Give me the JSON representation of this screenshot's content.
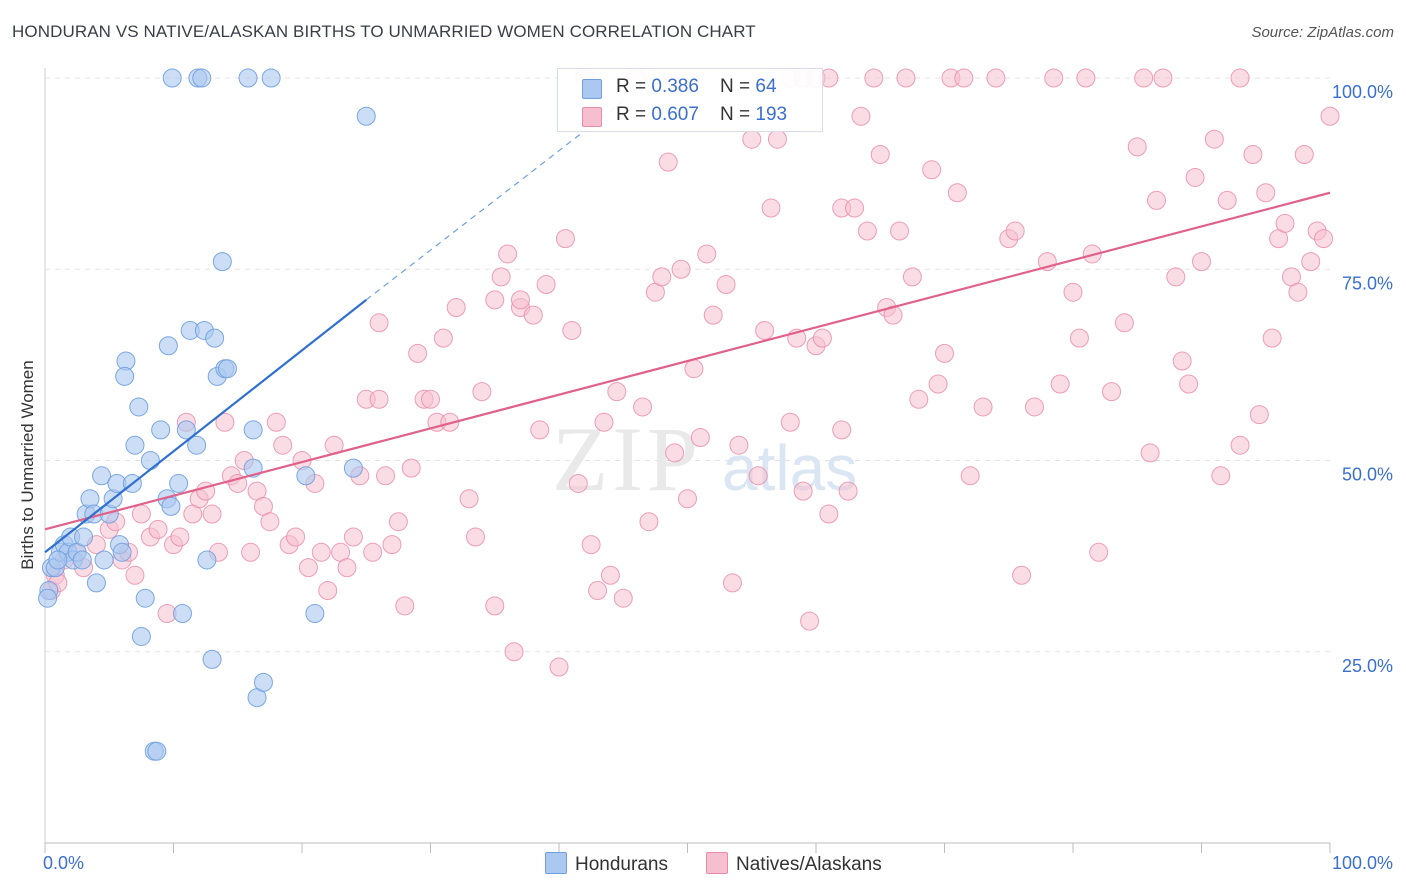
{
  "title": "HONDURAN VS NATIVE/ALASKAN BIRTHS TO UNMARRIED WOMEN CORRELATION CHART",
  "source": "Source: ZipAtlas.com",
  "watermark": {
    "zip": "ZIP",
    "atlas": "atlas"
  },
  "colors": {
    "blue_fill": "#aac8f0",
    "blue_stroke": "#6f9fe0",
    "blue_line": "#2f6fcf",
    "pink_fill": "#f6bfd0",
    "pink_stroke": "#e88aa8",
    "pink_line": "#e0628c",
    "axis_label": "#3a6fd0",
    "grid": "#e3e3e3"
  },
  "legend": {
    "rows": [
      {
        "r_label": "R = ",
        "r_value": "0.386",
        "n_label": "N = ",
        "n_value": "64"
      },
      {
        "r_label": "R = ",
        "r_value": "0.607",
        "n_label": "N = ",
        "n_value": "193"
      }
    ]
  },
  "bottom_legend": [
    "Hondurans",
    "Natives/Alaskans"
  ],
  "chart_data": {
    "type": "scatter",
    "title": "HONDURAN VS NATIVE/ALASKAN BIRTHS TO UNMARRIED WOMEN CORRELATION CHART",
    "xlabel": "",
    "ylabel": "Births to Unmarried Women",
    "xlim": [
      0,
      100
    ],
    "ylim": [
      0,
      100
    ],
    "x_tick_labels": [
      "0.0%",
      "100.0%"
    ],
    "y_tick_labels": [
      "25.0%",
      "50.0%",
      "75.0%",
      "100.0%"
    ],
    "y_ticks": [
      25,
      50,
      75,
      100
    ],
    "series": [
      {
        "name": "Hondurans",
        "r": 0.386,
        "n": 64,
        "trend": {
          "x0": 0,
          "y0": 38,
          "x1": 25,
          "y1": 71,
          "dashed_to_x": 45,
          "dashed_to_y": 97
        },
        "points": [
          [
            0.3,
            33
          ],
          [
            0.5,
            36
          ],
          [
            0.8,
            36
          ],
          [
            1.2,
            38
          ],
          [
            1.5,
            39
          ],
          [
            1.8,
            38
          ],
          [
            2.0,
            40
          ],
          [
            2.2,
            37
          ],
          [
            2.5,
            38
          ],
          [
            3.0,
            40
          ],
          [
            3.2,
            43
          ],
          [
            3.5,
            45
          ],
          [
            3.8,
            43
          ],
          [
            4.0,
            34
          ],
          [
            4.4,
            48
          ],
          [
            4.6,
            37
          ],
          [
            5.0,
            43
          ],
          [
            5.3,
            45
          ],
          [
            5.6,
            47
          ],
          [
            5.8,
            39
          ],
          [
            6.0,
            38
          ],
          [
            6.3,
            63
          ],
          [
            6.2,
            61
          ],
          [
            6.8,
            47
          ],
          [
            7.0,
            52
          ],
          [
            7.3,
            57
          ],
          [
            7.5,
            27
          ],
          [
            7.8,
            32
          ],
          [
            8.2,
            50
          ],
          [
            8.5,
            12
          ],
          [
            8.7,
            12
          ],
          [
            9.0,
            54
          ],
          [
            9.5,
            45
          ],
          [
            9.8,
            44
          ],
          [
            9.6,
            65
          ],
          [
            10.4,
            47
          ],
          [
            10.7,
            30
          ],
          [
            11.0,
            54
          ],
          [
            11.3,
            67
          ],
          [
            11.8,
            52
          ],
          [
            12.4,
            67
          ],
          [
            12.6,
            37
          ],
          [
            13.0,
            24
          ],
          [
            13.2,
            66
          ],
          [
            13.4,
            61
          ],
          [
            13.8,
            76
          ],
          [
            14.0,
            62
          ],
          [
            14.2,
            62
          ],
          [
            16.2,
            49
          ],
          [
            16.2,
            54
          ],
          [
            16.5,
            19
          ],
          [
            17.0,
            21
          ],
          [
            9.9,
            100
          ],
          [
            11.9,
            100
          ],
          [
            12.2,
            100
          ],
          [
            15.8,
            100
          ],
          [
            17.6,
            100
          ],
          [
            20.3,
            48
          ],
          [
            21.0,
            30
          ],
          [
            24.0,
            49
          ],
          [
            25.0,
            95
          ],
          [
            0.2,
            32
          ],
          [
            1.0,
            37
          ],
          [
            2.9,
            37
          ]
        ]
      },
      {
        "name": "Natives/Alaskans",
        "r": 0.607,
        "n": 193,
        "trend": {
          "x0": 0,
          "y0": 41,
          "x1": 100,
          "y1": 85
        },
        "points": [
          [
            0.5,
            33
          ],
          [
            0.8,
            35
          ],
          [
            1.0,
            34
          ],
          [
            1.5,
            37
          ],
          [
            2.5,
            38
          ],
          [
            3.0,
            36
          ],
          [
            4.0,
            39
          ],
          [
            5.0,
            41
          ],
          [
            5.5,
            42
          ],
          [
            6.0,
            37
          ],
          [
            6.5,
            38
          ],
          [
            7.0,
            35
          ],
          [
            7.5,
            43
          ],
          [
            8.2,
            40
          ],
          [
            8.8,
            41
          ],
          [
            9.5,
            30
          ],
          [
            10.0,
            39
          ],
          [
            10.5,
            40
          ],
          [
            11.0,
            55
          ],
          [
            11.5,
            43
          ],
          [
            12.0,
            45
          ],
          [
            12.5,
            46
          ],
          [
            13.0,
            43
          ],
          [
            13.5,
            38
          ],
          [
            14.0,
            55
          ],
          [
            14.5,
            48
          ],
          [
            15.0,
            47
          ],
          [
            15.5,
            50
          ],
          [
            16.0,
            38
          ],
          [
            16.5,
            46
          ],
          [
            17.0,
            44
          ],
          [
            17.5,
            42
          ],
          [
            18.0,
            55
          ],
          [
            18.5,
            52
          ],
          [
            19.0,
            39
          ],
          [
            19.5,
            40
          ],
          [
            20.0,
            50
          ],
          [
            20.5,
            36
          ],
          [
            21.0,
            47
          ],
          [
            21.5,
            38
          ],
          [
            22.0,
            33
          ],
          [
            22.5,
            52
          ],
          [
            23.0,
            38
          ],
          [
            23.5,
            36
          ],
          [
            24.0,
            40
          ],
          [
            24.5,
            48
          ],
          [
            25.0,
            58
          ],
          [
            25.5,
            38
          ],
          [
            26.0,
            68
          ],
          [
            26.5,
            48
          ],
          [
            27.0,
            39
          ],
          [
            27.5,
            42
          ],
          [
            28.0,
            31
          ],
          [
            28.5,
            49
          ],
          [
            29.0,
            64
          ],
          [
            29.5,
            58
          ],
          [
            30.0,
            58
          ],
          [
            30.5,
            55
          ],
          [
            31.0,
            66
          ],
          [
            31.5,
            55
          ],
          [
            32.0,
            70
          ],
          [
            33.0,
            45
          ],
          [
            33.5,
            40
          ],
          [
            34.0,
            59
          ],
          [
            35.0,
            71
          ],
          [
            35.5,
            74
          ],
          [
            35.0,
            31
          ],
          [
            36.0,
            77
          ],
          [
            36.5,
            25
          ],
          [
            37.0,
            70
          ],
          [
            38.0,
            69
          ],
          [
            38.5,
            54
          ],
          [
            39.0,
            73
          ],
          [
            40.0,
            23
          ],
          [
            40.5,
            79
          ],
          [
            41.0,
            67
          ],
          [
            41.5,
            47
          ],
          [
            42.0,
            100
          ],
          [
            42.5,
            39
          ],
          [
            43.0,
            33
          ],
          [
            43.5,
            55
          ],
          [
            44.0,
            35
          ],
          [
            44.5,
            59
          ],
          [
            45.0,
            32
          ],
          [
            46.0,
            100
          ],
          [
            46.5,
            57
          ],
          [
            47.0,
            42
          ],
          [
            47.5,
            72
          ],
          [
            48.0,
            74
          ],
          [
            48.5,
            89
          ],
          [
            49.0,
            51
          ],
          [
            49.5,
            75
          ],
          [
            50.0,
            45
          ],
          [
            50.5,
            62
          ],
          [
            51.0,
            53
          ],
          [
            51.5,
            77
          ],
          [
            52.0,
            69
          ],
          [
            53.0,
            73
          ],
          [
            53.5,
            34
          ],
          [
            54.0,
            52
          ],
          [
            55.0,
            92
          ],
          [
            55.5,
            48
          ],
          [
            56.0,
            67
          ],
          [
            56.5,
            83
          ],
          [
            57.0,
            92
          ],
          [
            58.0,
            55
          ],
          [
            58.5,
            66
          ],
          [
            59.0,
            46
          ],
          [
            60.0,
            65
          ],
          [
            60.5,
            66
          ],
          [
            61.0,
            43
          ],
          [
            62.0,
            83
          ],
          [
            62.5,
            46
          ],
          [
            63.0,
            83
          ],
          [
            63.5,
            95
          ],
          [
            64.0,
            80
          ],
          [
            65.0,
            90
          ],
          [
            65.5,
            70
          ],
          [
            66.0,
            69
          ],
          [
            67.0,
            100
          ],
          [
            67.5,
            74
          ],
          [
            68.0,
            58
          ],
          [
            69.0,
            88
          ],
          [
            69.5,
            60
          ],
          [
            70.0,
            64
          ],
          [
            71.0,
            85
          ],
          [
            72.0,
            48
          ],
          [
            73.0,
            57
          ],
          [
            74.0,
            100
          ],
          [
            75.0,
            79
          ],
          [
            75.5,
            80
          ],
          [
            76.0,
            35
          ],
          [
            77.0,
            57
          ],
          [
            78.0,
            76
          ],
          [
            79.0,
            60
          ],
          [
            80.0,
            72
          ],
          [
            80.5,
            66
          ],
          [
            81.0,
            100
          ],
          [
            81.5,
            77
          ],
          [
            82.0,
            38
          ],
          [
            83.0,
            59
          ],
          [
            84.0,
            68
          ],
          [
            85.0,
            91
          ],
          [
            86.0,
            51
          ],
          [
            86.5,
            84
          ],
          [
            87.0,
            100
          ],
          [
            88.0,
            74
          ],
          [
            88.5,
            63
          ],
          [
            89.0,
            60
          ],
          [
            89.5,
            87
          ],
          [
            90.0,
            76
          ],
          [
            91.0,
            92
          ],
          [
            91.5,
            48
          ],
          [
            92.0,
            84
          ],
          [
            93.0,
            52
          ],
          [
            94.0,
            90
          ],
          [
            94.5,
            56
          ],
          [
            95.0,
            85
          ],
          [
            95.5,
            66
          ],
          [
            96.0,
            79
          ],
          [
            96.5,
            81
          ],
          [
            97.0,
            74
          ],
          [
            97.5,
            72
          ],
          [
            98.0,
            90
          ],
          [
            98.5,
            76
          ],
          [
            99.0,
            80
          ],
          [
            99.5,
            79
          ],
          [
            100.0,
            95
          ],
          [
            64.5,
            100
          ],
          [
            58.0,
            100
          ],
          [
            59.0,
            100
          ],
          [
            60.0,
            100
          ],
          [
            61.0,
            100
          ],
          [
            70.5,
            100
          ],
          [
            71.5,
            100
          ],
          [
            78.5,
            100
          ],
          [
            85.5,
            100
          ],
          [
            93.0,
            100
          ],
          [
            37.0,
            71
          ],
          [
            26.0,
            58
          ],
          [
            66.5,
            80
          ],
          [
            59.5,
            29
          ],
          [
            62.0,
            54
          ]
        ]
      }
    ]
  }
}
